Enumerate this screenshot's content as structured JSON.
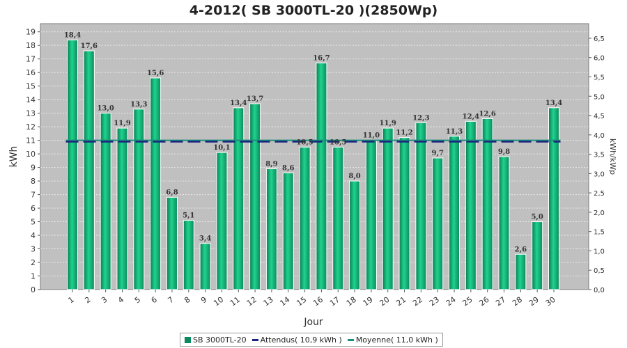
{
  "chart_data": {
    "type": "bar",
    "title": "4-2012( SB 3000TL-20 )(2850Wp)",
    "xlabel": "Jour",
    "ylabel": "kWh",
    "y2label": "kWh/kWp",
    "categories": [
      "1",
      "2",
      "3",
      "4",
      "5",
      "6",
      "7",
      "8",
      "9",
      "10",
      "11",
      "12",
      "13",
      "14",
      "15",
      "16",
      "17",
      "18",
      "19",
      "20",
      "21",
      "22",
      "23",
      "24",
      "25",
      "26",
      "27",
      "28",
      "29",
      "30"
    ],
    "series": [
      {
        "name": "SB 3000TL-20",
        "values": [
          18.4,
          17.6,
          13.0,
          11.9,
          13.3,
          15.6,
          6.8,
          5.1,
          3.4,
          10.1,
          13.4,
          13.7,
          8.9,
          8.6,
          10.5,
          16.7,
          10.5,
          8.0,
          11.0,
          11.9,
          11.2,
          12.3,
          9.7,
          11.3,
          12.4,
          12.6,
          9.8,
          2.6,
          5.0,
          13.4
        ],
        "labels": [
          "18,4",
          "17,6",
          "13,0",
          "11,9",
          "13,3",
          "15,6",
          "6,8",
          "5,1",
          "3,4",
          "10,1",
          "13,4",
          "13,7",
          "8,9",
          "8,6",
          "10,5",
          "16,7",
          "10,5",
          "8,0",
          "11,0",
          "11,9",
          "11,2",
          "12,3",
          "9,7",
          "11,3",
          "12,4",
          "12,6",
          "9,8",
          "2,6",
          "5,0",
          "13,4"
        ],
        "color": "#0b8a5e"
      }
    ],
    "reference_lines": [
      {
        "name": "Attendus",
        "value": 10.9,
        "color": "#1a237e",
        "style": "dashed"
      },
      {
        "name": "Moyenne",
        "value": 11.0,
        "color": "#1a8f7a",
        "style": "solid"
      }
    ],
    "ylim": [
      0,
      19.6
    ],
    "yticks": [
      0,
      1,
      2,
      3,
      4,
      5,
      6,
      7,
      8,
      9,
      10,
      11,
      12,
      13,
      14,
      15,
      16,
      17,
      18,
      19
    ],
    "y2lim": [
      0,
      6.877
    ],
    "y2ticks": [
      "0,0",
      "0,5",
      "1,0",
      "1,5",
      "2,0",
      "2,5",
      "3,0",
      "3,5",
      "4,0",
      "4,5",
      "5,0",
      "5,5",
      "6,0",
      "6,5"
    ],
    "grid": true,
    "legend_position": "bottom",
    "background_color": "#c0c0c0"
  },
  "legend": {
    "items": [
      {
        "label": "SB 3000TL-20",
        "kind": "box",
        "color": "#0b8a5e"
      },
      {
        "label": "Attendus( 10,9 kWh )",
        "kind": "line",
        "color": "#1a237e"
      },
      {
        "label": "Moyenne( 11,0 kWh )",
        "kind": "line",
        "color": "#1a8f7a"
      }
    ]
  }
}
